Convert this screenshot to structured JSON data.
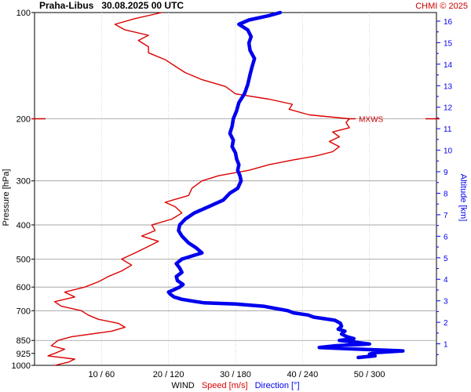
{
  "header": {
    "title": "Praha-Libus   30.08.2025 00 UTC",
    "credit": "CHMI © 2025"
  },
  "axes": {
    "pressure_label": "Pressure [hPa]",
    "altitude_label": "Altitude [km]",
    "bottom_labels": {
      "wind": "WIND",
      "speed": "Speed [m/s]",
      "direction": "Direction [°]"
    }
  },
  "colors": {
    "speed": "#dd0000",
    "direction": "#0000ee",
    "grid": "#999999",
    "mxws": "#cc0000"
  },
  "chart_data": {
    "type": "line",
    "y_axis": {
      "quantity": "pressure",
      "unit": "hPa",
      "scale": "log",
      "reversed": true,
      "range": [
        1000,
        100
      ],
      "ticks": [
        100,
        200,
        300,
        400,
        500,
        600,
        700,
        850,
        925,
        1000
      ],
      "tick_labels": [
        "100",
        "200",
        "300",
        "400",
        "500",
        "600",
        "700",
        "850",
        "925",
        "1000"
      ]
    },
    "x_axis": {
      "label": "WIND",
      "speed_range": [
        0,
        60
      ],
      "direction_range": [
        0,
        360
      ],
      "tick_labels": [
        "10 / 60",
        "20 / 120",
        "30 / 180",
        "40 / 240",
        "50 / 300"
      ],
      "grid": true
    },
    "altitude_axis": {
      "unit": "km",
      "range": [
        0,
        16.4
      ],
      "ticks": [
        1,
        2,
        3,
        4,
        5,
        6,
        7,
        8,
        9,
        10,
        11,
        12,
        13,
        14,
        15,
        16
      ],
      "tick_labels": [
        "1",
        "2",
        "3",
        "4",
        "5",
        "6",
        "7",
        "8",
        "9",
        "10",
        "11",
        "12",
        "13",
        "14",
        "15",
        "16"
      ]
    },
    "series": [
      {
        "name": "Speed [m/s]",
        "unit": "m/s",
        "points": [
          [
            1000,
            3.0
          ],
          [
            980,
            5.0
          ],
          [
            960,
            6.0
          ],
          [
            940,
            2.0
          ],
          [
            925,
            3.0
          ],
          [
            900,
            4.5
          ],
          [
            880,
            2.5
          ],
          [
            850,
            3.5
          ],
          [
            830,
            5.5
          ],
          [
            800,
            11.5
          ],
          [
            780,
            13.5
          ],
          [
            760,
            12.5
          ],
          [
            740,
            9.5
          ],
          [
            720,
            8.0
          ],
          [
            700,
            7.0
          ],
          [
            680,
            4.0
          ],
          [
            660,
            3.0
          ],
          [
            640,
            6.0
          ],
          [
            620,
            4.5
          ],
          [
            600,
            7.5
          ],
          [
            580,
            9.5
          ],
          [
            560,
            11.0
          ],
          [
            540,
            13.0
          ],
          [
            520,
            14.5
          ],
          [
            500,
            13.0
          ],
          [
            480,
            15.0
          ],
          [
            460,
            17.0
          ],
          [
            445,
            18.5
          ],
          [
            430,
            16.0
          ],
          [
            415,
            18.0
          ],
          [
            400,
            17.5
          ],
          [
            385,
            20.5
          ],
          [
            370,
            22.0
          ],
          [
            355,
            21.0
          ],
          [
            345,
            19.5
          ],
          [
            330,
            23.0
          ],
          [
            315,
            23.5
          ],
          [
            300,
            25.0
          ],
          [
            290,
            27.5
          ],
          [
            280,
            32.0
          ],
          [
            270,
            35.0
          ],
          [
            262,
            38.5
          ],
          [
            255,
            42.0
          ],
          [
            248,
            44.5
          ],
          [
            240,
            45.5
          ],
          [
            232,
            44.0
          ],
          [
            225,
            45.5
          ],
          [
            218,
            44.5
          ],
          [
            212,
            47.0
          ],
          [
            205,
            46.5
          ],
          [
            200,
            47.0
          ],
          [
            195,
            41.0
          ],
          [
            188,
            38.0
          ],
          [
            182,
            38.5
          ],
          [
            176,
            35.0
          ],
          [
            170,
            30.0
          ],
          [
            162,
            28.5
          ],
          [
            155,
            25.0
          ],
          [
            148,
            22.5
          ],
          [
            142,
            21.0
          ],
          [
            136,
            19.5
          ],
          [
            130,
            17.0
          ],
          [
            125,
            17.0
          ],
          [
            120,
            15.5
          ],
          [
            116,
            17.0
          ],
          [
            112,
            13.5
          ],
          [
            108,
            12.0
          ],
          [
            104,
            15.0
          ],
          [
            100,
            19.0
          ]
        ]
      },
      {
        "name": "Direction [°]",
        "unit": "deg",
        "points": [
          [
            950,
            290
          ],
          [
            940,
            305
          ],
          [
            930,
            300
          ],
          [
            920,
            305
          ],
          [
            910,
            330
          ],
          [
            900,
            290
          ],
          [
            890,
            255
          ],
          [
            880,
            270
          ],
          [
            870,
            300
          ],
          [
            860,
            287
          ],
          [
            850,
            273
          ],
          [
            840,
            286
          ],
          [
            830,
            280
          ],
          [
            815,
            275
          ],
          [
            800,
            278
          ],
          [
            790,
            272
          ],
          [
            775,
            275
          ],
          [
            760,
            274
          ],
          [
            745,
            269
          ],
          [
            730,
            250
          ],
          [
            720,
            245
          ],
          [
            710,
            232
          ],
          [
            700,
            227
          ],
          [
            690,
            216
          ],
          [
            680,
            205
          ],
          [
            670,
            180
          ],
          [
            665,
            152
          ],
          [
            660,
            145
          ],
          [
            650,
            132
          ],
          [
            640,
            125
          ],
          [
            630,
            122
          ],
          [
            620,
            120
          ],
          [
            610,
            125
          ],
          [
            600,
            130
          ],
          [
            590,
            133
          ],
          [
            575,
            128
          ],
          [
            560,
            127
          ],
          [
            545,
            132
          ],
          [
            530,
            130
          ],
          [
            515,
            127
          ],
          [
            500,
            132
          ],
          [
            480,
            150
          ],
          [
            465,
            145
          ],
          [
            450,
            138
          ],
          [
            430,
            132
          ],
          [
            415,
            129
          ],
          [
            400,
            130
          ],
          [
            385,
            135
          ],
          [
            370,
            143
          ],
          [
            355,
            156
          ],
          [
            340,
            169
          ],
          [
            325,
            175
          ],
          [
            315,
            182
          ],
          [
            300,
            185
          ],
          [
            290,
            184
          ],
          [
            280,
            182
          ],
          [
            270,
            183
          ],
          [
            260,
            181
          ],
          [
            250,
            180
          ],
          [
            240,
            177
          ],
          [
            230,
            178
          ],
          [
            220,
            175
          ],
          [
            210,
            177
          ],
          [
            200,
            178
          ],
          [
            190,
            181
          ],
          [
            180,
            183
          ],
          [
            170,
            188
          ],
          [
            160,
            191
          ],
          [
            150,
            193
          ],
          [
            142,
            195
          ],
          [
            135,
            197
          ],
          [
            128,
            193
          ],
          [
            122,
            192
          ],
          [
            117,
            194
          ],
          [
            112,
            191
          ],
          [
            108,
            183
          ],
          [
            105,
            192
          ],
          [
            102,
            210
          ],
          [
            100,
            220
          ]
        ]
      }
    ],
    "annotations": [
      {
        "text": "MXWS",
        "pressure": 200,
        "speed": 47.0
      }
    ]
  }
}
